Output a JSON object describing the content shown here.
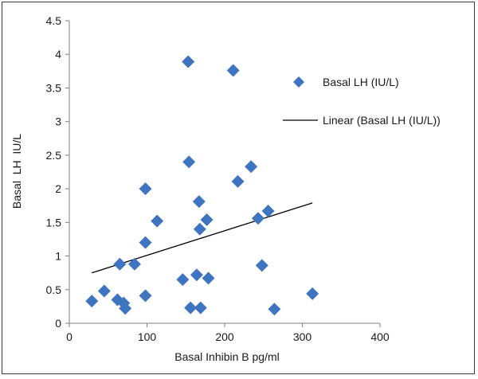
{
  "chart_data": {
    "type": "scatter",
    "title": "",
    "xlabel": "Basal Inhibin B pg/ml",
    "ylabel": "Basal  LH  IU/L",
    "xlim": [
      0,
      400
    ],
    "ylim": [
      0,
      4.5
    ],
    "x_ticks": [
      "0",
      "100",
      "200",
      "300",
      "400"
    ],
    "y_ticks": [
      "0",
      "0.5",
      "1",
      "1.5",
      "2",
      "2.5",
      "3",
      "3.5",
      "4",
      "4.5"
    ],
    "grid": false,
    "legend_position": "right",
    "series": [
      {
        "name": "Basal LH (IU/L)",
        "marker": "diamond",
        "color": "#3f74c0",
        "points": [
          {
            "x": 29,
            "y": 0.33
          },
          {
            "x": 45,
            "y": 0.48
          },
          {
            "x": 62,
            "y": 0.35
          },
          {
            "x": 65,
            "y": 0.88
          },
          {
            "x": 70,
            "y": 0.3
          },
          {
            "x": 72,
            "y": 0.22
          },
          {
            "x": 84,
            "y": 0.88
          },
          {
            "x": 98,
            "y": 2.0
          },
          {
            "x": 98,
            "y": 1.2
          },
          {
            "x": 98,
            "y": 0.41
          },
          {
            "x": 113,
            "y": 1.52
          },
          {
            "x": 146,
            "y": 0.65
          },
          {
            "x": 153,
            "y": 3.89
          },
          {
            "x": 154,
            "y": 2.4
          },
          {
            "x": 156,
            "y": 0.23
          },
          {
            "x": 164,
            "y": 0.72
          },
          {
            "x": 167,
            "y": 1.81
          },
          {
            "x": 168,
            "y": 1.4
          },
          {
            "x": 169,
            "y": 0.23
          },
          {
            "x": 177,
            "y": 1.54
          },
          {
            "x": 179,
            "y": 0.67
          },
          {
            "x": 211,
            "y": 3.76
          },
          {
            "x": 217,
            "y": 2.11
          },
          {
            "x": 234,
            "y": 2.33
          },
          {
            "x": 243,
            "y": 1.56
          },
          {
            "x": 248,
            "y": 0.86
          },
          {
            "x": 256,
            "y": 1.67
          },
          {
            "x": 264,
            "y": 0.21
          },
          {
            "x": 313,
            "y": 0.44
          }
        ]
      }
    ],
    "trendline": {
      "name": "Linear (Basal LH (IU/L))",
      "type": "linear",
      "color": "#000000",
      "from": {
        "x": 29,
        "y": 0.75
      },
      "to": {
        "x": 313,
        "y": 1.79
      }
    }
  }
}
